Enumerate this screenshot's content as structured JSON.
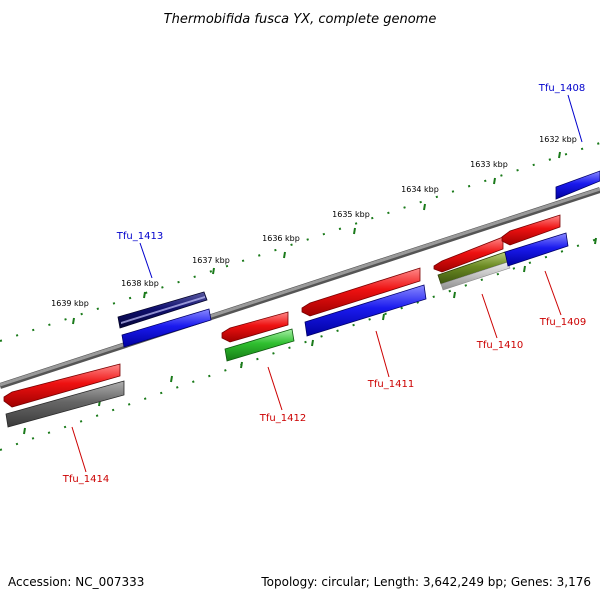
{
  "title": "Thermobifida fusca YX, complete genome",
  "accession": "Accession: NC_007333",
  "summary": "Topology: circular; Length: 3,642,249 bp; Genes: 3,176",
  "colors": {
    "backbone": "#8a8a8a",
    "tick": "#1a7a1a",
    "forward_label": "#0000cc",
    "reverse_label": "#cc0000",
    "red": "#ee1111",
    "blue": "#1a1aee",
    "navy": "#101070",
    "green": "#2fbf2f",
    "olive": "#6b8a22",
    "gray": "#666666",
    "lightgray": "#c4c4c4"
  },
  "ruler_labels": [
    {
      "kbp": 1632,
      "text": "1632 kbp"
    },
    {
      "kbp": 1633,
      "text": "1633 kbp"
    },
    {
      "kbp": 1634,
      "text": "1634 kbp"
    },
    {
      "kbp": 1635,
      "text": "1635 kbp"
    },
    {
      "kbp": 1636,
      "text": "1636 kbp"
    },
    {
      "kbp": 1637,
      "text": "1637 kbp"
    },
    {
      "kbp": 1638,
      "text": "1638 kbp"
    },
    {
      "kbp": 1639,
      "text": "1639 kbp"
    }
  ],
  "gene_labels": [
    {
      "id": "Tfu_1408",
      "text": "Tfu_1408",
      "strand": "forward"
    },
    {
      "id": "Tfu_1409",
      "text": "Tfu_1409",
      "strand": "reverse"
    },
    {
      "id": "Tfu_1410",
      "text": "Tfu_1410",
      "strand": "reverse"
    },
    {
      "id": "Tfu_1411",
      "text": "Tfu_1411",
      "strand": "reverse"
    },
    {
      "id": "Tfu_1412",
      "text": "Tfu_1412",
      "strand": "reverse"
    },
    {
      "id": "Tfu_1413",
      "text": "Tfu_1413",
      "strand": "forward"
    },
    {
      "id": "Tfu_1414",
      "text": "Tfu_1414",
      "strand": "reverse"
    }
  ]
}
